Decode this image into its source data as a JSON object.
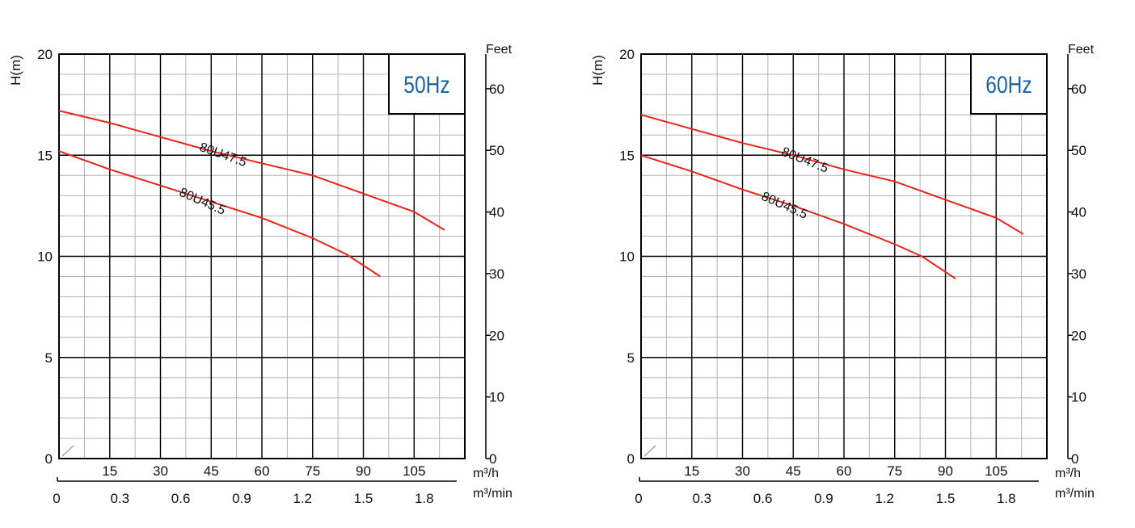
{
  "chart_data": [
    {
      "type": "line",
      "freq_label": "50Hz",
      "ylabel": "H(m)",
      "ylabel_right": "Feet",
      "xlabel_primary": "m³/h",
      "xlabel_secondary": "m³/min",
      "xlim": [
        0,
        120
      ],
      "ylim": [
        0,
        20
      ],
      "yticks": [
        "0",
        "5",
        "10",
        "15",
        "20"
      ],
      "yticks_ft": [
        "0",
        "10",
        "20",
        "30",
        "40",
        "50",
        "60"
      ],
      "xticks_m3h": [
        "15",
        "30",
        "45",
        "60",
        "75",
        "90",
        "105"
      ],
      "xticks_m3min": [
        "0",
        "0.3",
        "0.6",
        "0.9",
        "1.2",
        "1.5",
        "1.8"
      ],
      "grid": true,
      "series": [
        {
          "name": "80U47.5",
          "color": "#e8231c",
          "x": [
            0,
            15,
            30,
            45,
            60,
            75,
            90,
            105,
            114
          ],
          "y": [
            17.2,
            16.6,
            15.9,
            15.2,
            14.6,
            14.0,
            13.1,
            12.2,
            11.3
          ]
        },
        {
          "name": "80U45.5",
          "color": "#e8231c",
          "x": [
            0,
            15,
            30,
            45,
            60,
            75,
            85,
            95
          ],
          "y": [
            15.2,
            14.3,
            13.5,
            12.7,
            11.9,
            10.9,
            10.1,
            9.0
          ]
        }
      ]
    },
    {
      "type": "line",
      "freq_label": "60Hz",
      "ylabel": "H(m)",
      "ylabel_right": "Feet",
      "xlabel_primary": "m³/h",
      "xlabel_secondary": "m³/min",
      "xlim": [
        0,
        120
      ],
      "ylim": [
        0,
        20
      ],
      "yticks": [
        "0",
        "5",
        "10",
        "15",
        "20"
      ],
      "yticks_ft": [
        "0",
        "10",
        "20",
        "30",
        "40",
        "50",
        "60"
      ],
      "xticks_m3h": [
        "15",
        "30",
        "45",
        "60",
        "75",
        "90",
        "105"
      ],
      "xticks_m3min": [
        "0",
        "0.3",
        "0.6",
        "0.9",
        "1.2",
        "1.5",
        "1.8"
      ],
      "grid": true,
      "series": [
        {
          "name": "80U47.5",
          "color": "#e8231c",
          "x": [
            0,
            15,
            30,
            45,
            60,
            75,
            90,
            105,
            113
          ],
          "y": [
            17.0,
            16.3,
            15.6,
            15.0,
            14.3,
            13.7,
            12.8,
            11.9,
            11.1
          ]
        },
        {
          "name": "80U45.5",
          "color": "#e8231c",
          "x": [
            0,
            15,
            30,
            45,
            60,
            75,
            83,
            93
          ],
          "y": [
            15.0,
            14.2,
            13.3,
            12.5,
            11.6,
            10.6,
            10.0,
            8.9
          ]
        }
      ]
    }
  ]
}
